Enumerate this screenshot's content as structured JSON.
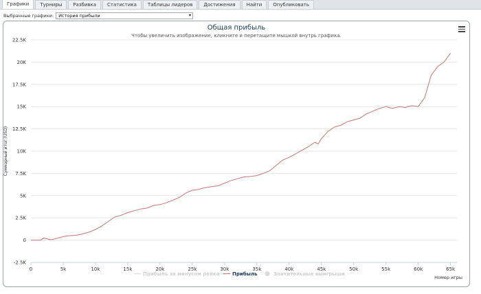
{
  "tabs": [
    {
      "label": "Графики",
      "active": true
    },
    {
      "label": "Турниры"
    },
    {
      "label": "Разбивка"
    },
    {
      "label": "Статистика"
    },
    {
      "label": "Таблицы лидеров"
    },
    {
      "label": "Достижения"
    },
    {
      "label": "Найти"
    },
    {
      "label": "Опубликовать"
    }
  ],
  "selector": {
    "label": "Выбранные графики:",
    "value": "История прибыли"
  },
  "chart_data": {
    "type": "line",
    "title": "Общая прибыль",
    "subtitle": "Чтобы увеличить изображение, кликните и перетащите мышкой внутрь графика.",
    "xlabel": "Номер игры",
    "ylabel": "Суммарный итог (USD)",
    "xlim": [
      0,
      66000
    ],
    "ylim": [
      -2500,
      22500
    ],
    "x_ticks": [
      0,
      5000,
      10000,
      15000,
      20000,
      25000,
      30000,
      35000,
      40000,
      45000,
      50000,
      55000,
      60000,
      65000
    ],
    "x_tick_labels": [
      "0",
      "5k",
      "10k",
      "15k",
      "20k",
      "25k",
      "30k",
      "35k",
      "40k",
      "45k",
      "50k",
      "55k",
      "60k",
      "65k"
    ],
    "y_ticks": [
      -2500,
      0,
      2500,
      5000,
      7500,
      10000,
      12500,
      15000,
      17500,
      20000,
      22500
    ],
    "y_tick_labels": [
      "-2.5K",
      "0",
      "2.5K",
      "5K",
      "7.5K",
      "10K",
      "12.5K",
      "15K",
      "17.5K",
      "20K",
      "22.5K"
    ],
    "grid": "horizontal",
    "legend_position": "bottom-center",
    "legend": [
      {
        "label": "Прибыль за минусом рейка",
        "color": "#d9d9d9",
        "active": false,
        "marker": "line"
      },
      {
        "label": "Прибыль",
        "color": "#c9746f",
        "active": true,
        "marker": "line"
      },
      {
        "label": "Значительные выигрыши",
        "color": "#d9d9d9",
        "active": false,
        "marker": "circle"
      }
    ],
    "series": [
      {
        "name": "Прибыль",
        "color": "#c9746f",
        "x": [
          0,
          1500,
          2000,
          3000,
          3500,
          5000,
          6000,
          7000,
          8000,
          9000,
          10000,
          11000,
          12000,
          13000,
          14000,
          15000,
          16000,
          17000,
          18000,
          19000,
          20000,
          21000,
          22000,
          23000,
          24000,
          25000,
          26000,
          27000,
          28000,
          29000,
          30000,
          31000,
          32000,
          33000,
          34000,
          35000,
          36000,
          37000,
          38000,
          39000,
          40000,
          41000,
          42000,
          43000,
          44000,
          44500,
          45000,
          46000,
          47000,
          48000,
          49000,
          50000,
          51000,
          52000,
          53000,
          54000,
          55000,
          56000,
          57000,
          58000,
          59000,
          60000,
          61000,
          62000,
          63000,
          64000,
          65000
        ],
        "y": [
          0,
          0,
          250,
          50,
          100,
          400,
          500,
          550,
          700,
          900,
          1200,
          1600,
          2100,
          2600,
          2800,
          3100,
          3300,
          3500,
          3600,
          3900,
          4000,
          4200,
          4500,
          4800,
          5300,
          5600,
          5700,
          5900,
          6000,
          6100,
          6400,
          6700,
          6900,
          7100,
          7150,
          7250,
          7500,
          7800,
          8400,
          9000,
          9300,
          9700,
          10100,
          10500,
          11000,
          10800,
          11400,
          12200,
          12700,
          12900,
          13300,
          13500,
          13700,
          14200,
          14500,
          14800,
          15000,
          14800,
          15000,
          14900,
          15100,
          15000,
          16000,
          18500,
          19500,
          20000,
          21000
        ]
      }
    ]
  }
}
